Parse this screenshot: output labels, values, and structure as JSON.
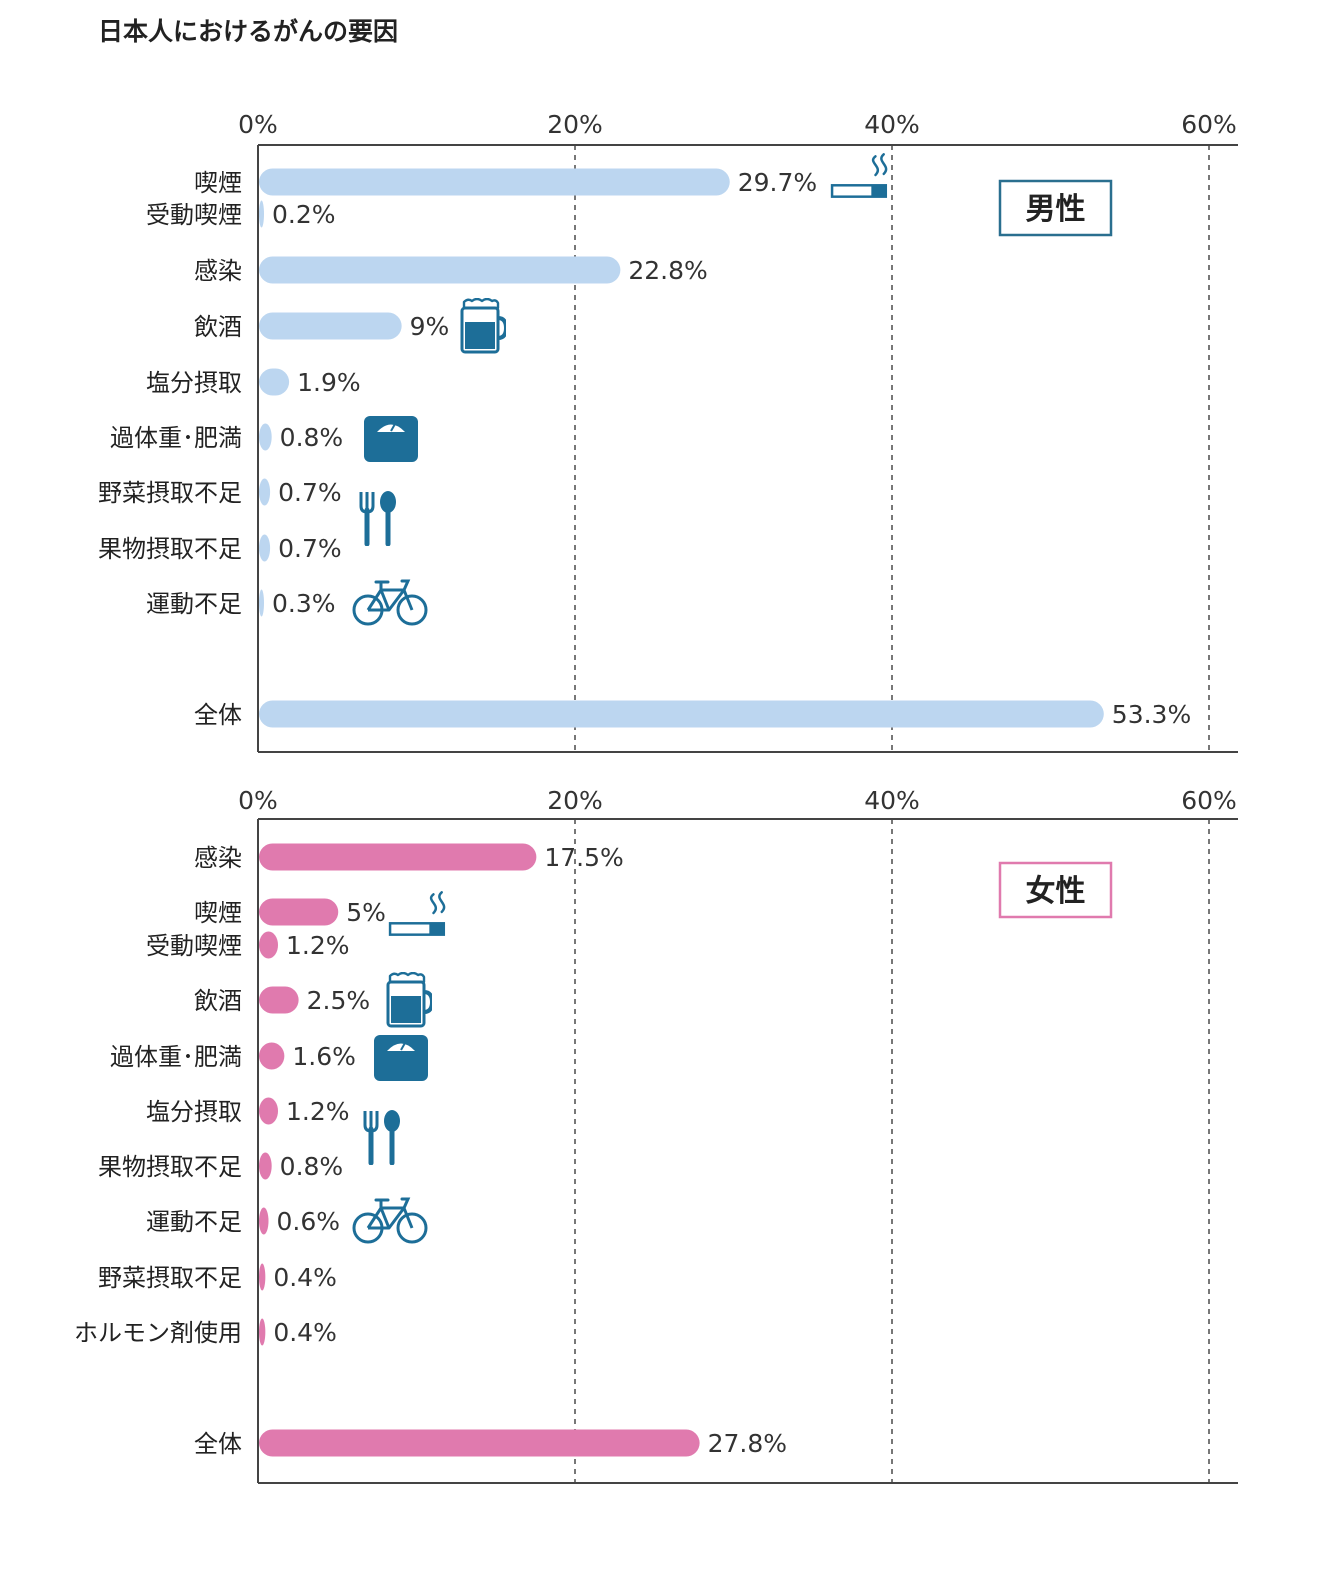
{
  "title": "日本人におけるがんの要因",
  "colors": {
    "male": "#bcd6f0",
    "female": "#e07aae",
    "icon": "#1d6e98",
    "axis": "#444444",
    "grid": "#777777",
    "male_box": "#2a6f8f",
    "female_box": "#e07aae"
  },
  "chart_data": [
    {
      "type": "bar",
      "orientation": "horizontal",
      "legend_label": "男性",
      "xlim": [
        0,
        60
      ],
      "xticks": [
        "0%",
        "20%",
        "40%",
        "60%"
      ],
      "grid": "dashed vertical at 20%, 40%, 60%",
      "categories": [
        "喫煙",
        "受動喫煙",
        "感染",
        "飲酒",
        "塩分摂取",
        "過体重･肥満",
        "野菜摂取不足",
        "果物摂取不足",
        "運動不足",
        "全体"
      ],
      "values": [
        29.7,
        0.2,
        22.8,
        9,
        1.9,
        0.8,
        0.7,
        0.7,
        0.3,
        53.3
      ],
      "labels": [
        "29.7%",
        "0.2%",
        "22.8%",
        "9%",
        "1.9%",
        "0.8%",
        "0.7%",
        "0.7%",
        "0.3%",
        "53.3%"
      ],
      "icons": [
        "cigarette-icon",
        "beer-mug-icon",
        "scale-icon",
        "fork-spoon-icon",
        "bicycle-icon"
      ]
    },
    {
      "type": "bar",
      "orientation": "horizontal",
      "legend_label": "女性",
      "xlim": [
        0,
        60
      ],
      "xticks": [
        "0%",
        "20%",
        "40%",
        "60%"
      ],
      "grid": "dashed vertical at 20%, 40%, 60%",
      "categories": [
        "感染",
        "喫煙",
        "受動喫煙",
        "飲酒",
        "過体重･肥満",
        "塩分摂取",
        "果物摂取不足",
        "運動不足",
        "野菜摂取不足",
        "ホルモン剤使用",
        "全体"
      ],
      "values": [
        17.5,
        5,
        1.2,
        2.5,
        1.6,
        1.2,
        0.8,
        0.6,
        0.4,
        0.4,
        27.8
      ],
      "labels": [
        "17.5%",
        "5%",
        "1.2%",
        "2.5%",
        "1.6%",
        "1.2%",
        "0.8%",
        "0.6%",
        "0.4%",
        "0.4%",
        "27.8%"
      ],
      "icons": [
        "cigarette-icon",
        "beer-mug-icon",
        "scale-icon",
        "fork-spoon-icon",
        "bicycle-icon"
      ]
    }
  ]
}
